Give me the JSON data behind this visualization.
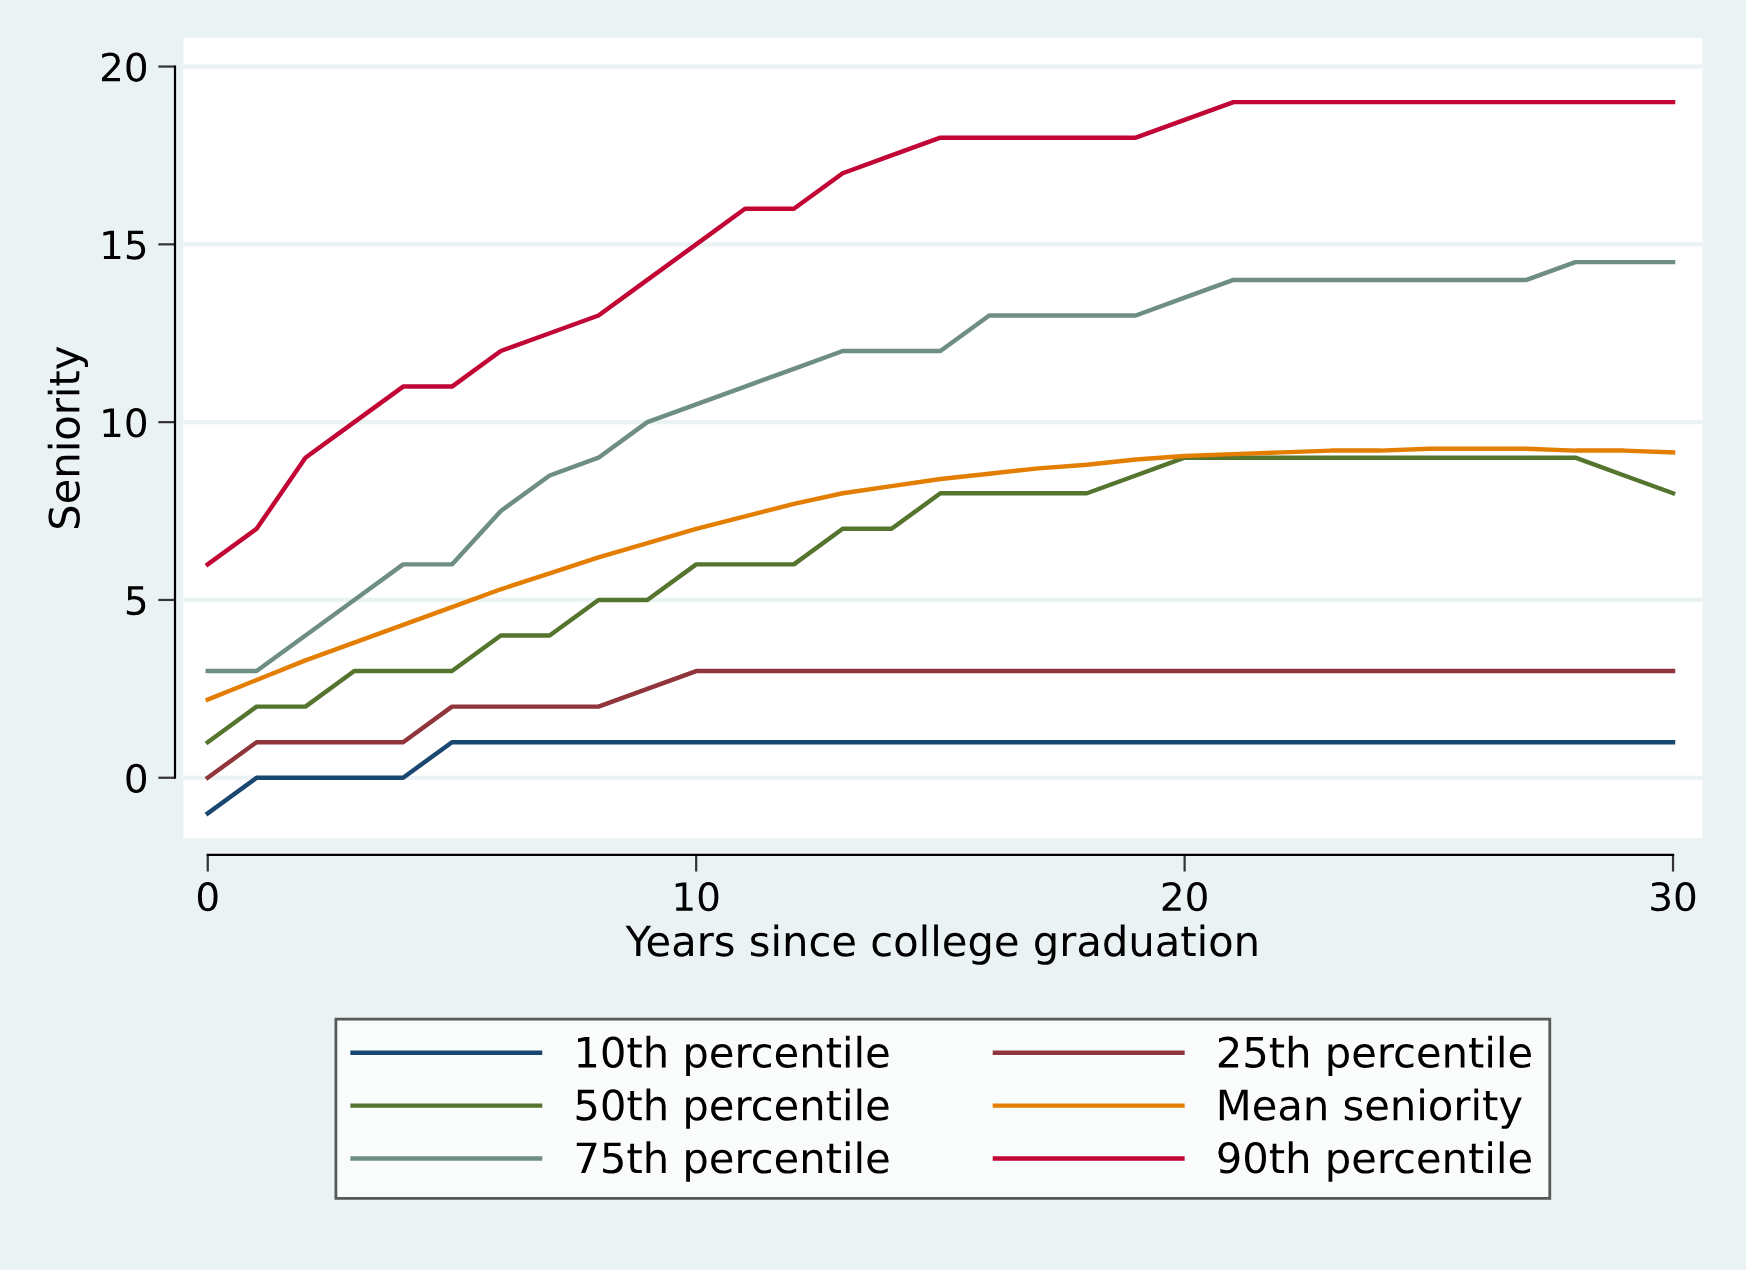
{
  "chart_data": {
    "type": "line",
    "xlabel": "Years since college graduation",
    "ylabel": "Seniority",
    "x": [
      0,
      1,
      2,
      3,
      4,
      5,
      6,
      7,
      8,
      9,
      10,
      11,
      12,
      13,
      14,
      15,
      16,
      17,
      18,
      19,
      20,
      21,
      22,
      23,
      24,
      25,
      26,
      27,
      28,
      29,
      30
    ],
    "series": [
      {
        "name": "10th percentile",
        "color": "#1a476f",
        "values": [
          -1,
          0,
          0,
          0,
          0,
          1,
          1,
          1,
          1,
          1,
          1,
          1,
          1,
          1,
          1,
          1,
          1,
          1,
          1,
          1,
          1,
          1,
          1,
          1,
          1,
          1,
          1,
          1,
          1,
          1,
          1
        ]
      },
      {
        "name": "25th percentile",
        "color": "#90353b",
        "values": [
          0,
          1,
          1,
          1,
          1,
          2,
          2,
          2,
          2,
          2.5,
          3,
          3,
          3,
          3,
          3,
          3,
          3,
          3,
          3,
          3,
          3,
          3,
          3,
          3,
          3,
          3,
          3,
          3,
          3,
          3,
          3
        ]
      },
      {
        "name": "50th percentile",
        "color": "#55752f",
        "values": [
          1,
          2,
          2,
          3,
          3,
          3,
          4,
          4,
          5,
          5,
          6,
          6,
          6,
          7,
          7,
          8,
          8,
          8,
          8,
          8.5,
          9,
          9,
          9,
          9,
          9,
          9,
          9,
          9,
          9,
          8.5,
          8
        ]
      },
      {
        "name": "Mean seniority",
        "color": "#e37e00",
        "values": [
          2.2,
          2.75,
          3.3,
          3.8,
          4.3,
          4.8,
          5.3,
          5.75,
          6.2,
          6.6,
          7.0,
          7.35,
          7.7,
          8.0,
          8.2,
          8.4,
          8.55,
          8.7,
          8.8,
          8.95,
          9.05,
          9.1,
          9.15,
          9.2,
          9.2,
          9.25,
          9.25,
          9.25,
          9.2,
          9.2,
          9.15
        ]
      },
      {
        "name": "75th percentile",
        "color": "#6e8e84",
        "values": [
          3,
          3,
          4,
          5,
          6,
          6,
          7.5,
          8.5,
          9,
          10,
          10.5,
          11,
          11.5,
          12,
          12,
          12,
          13,
          13,
          13,
          13,
          13.5,
          14,
          14,
          14,
          14,
          14,
          14,
          14,
          14.5,
          14.5,
          14.5
        ]
      },
      {
        "name": "90th percentile",
        "color": "#c10534",
        "values": [
          6,
          7,
          9,
          10,
          11,
          11,
          12,
          12.5,
          13,
          14,
          15,
          16,
          16,
          17,
          17.5,
          18,
          18,
          18,
          18,
          18,
          18.5,
          19,
          19,
          19,
          19,
          19,
          19,
          19,
          19,
          19,
          19
        ]
      }
    ],
    "xlim": [
      -0.5,
      30.6
    ],
    "ylim": [
      -1.7,
      20.8
    ],
    "xticks": [
      0,
      10,
      20,
      30
    ],
    "yticks": [
      0,
      5,
      10,
      15,
      20
    ],
    "grid": "y",
    "legend": "bottom",
    "marker": "none",
    "line_style": "solid"
  }
}
